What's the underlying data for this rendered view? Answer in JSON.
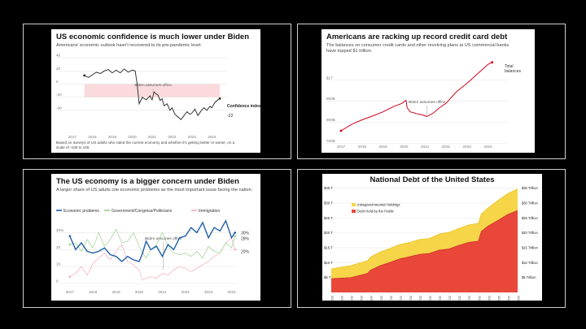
{
  "chart_data": [
    {
      "type": "line",
      "title": "US economic confidence is much lower under Biden",
      "subtitle": "Americans' economic outlook hasn't recovered to its pre-pandemic level.",
      "annotation": "Biden assumes office",
      "end_label": "Confidence index",
      "end_value_label": "-22",
      "footnote": "Based on surveys of US adults who rated the current economy and whether it's getting better or worse, on a scale of -100 to 100.",
      "ylim": [
        -55,
        45
      ],
      "yticks": [
        "40",
        "20",
        "0",
        "-20",
        "-40"
      ],
      "yticks_values": [
        40,
        20,
        0,
        -20,
        -40
      ],
      "xticks": [
        "2017",
        "2018",
        "2019",
        "2020",
        "2021",
        "2022",
        "2023",
        "2024"
      ],
      "xlim": [
        2017,
        2024.6
      ],
      "shade": [
        2017.6,
        2024.4,
        -20,
        0
      ],
      "x": [
        2017.6,
        2017.8,
        2018.0,
        2018.2,
        2018.4,
        2018.6,
        2018.8,
        2019.0,
        2019.2,
        2019.4,
        2019.6,
        2019.8,
        2020.0,
        2020.15,
        2020.25,
        2020.35,
        2020.5,
        2020.7,
        2020.9,
        2021.0,
        2021.1,
        2021.2,
        2021.3,
        2021.4,
        2021.5,
        2021.6,
        2021.75,
        2021.9,
        2022.0,
        2022.15,
        2022.3,
        2022.45,
        2022.6,
        2022.75,
        2022.9,
        2023.0,
        2023.15,
        2023.3,
        2023.45,
        2023.6,
        2023.75,
        2023.9,
        2024.0,
        2024.15,
        2024.3,
        2024.4
      ],
      "values": [
        13,
        10,
        14,
        18,
        16,
        20,
        22,
        17,
        21,
        17,
        23,
        18,
        21,
        20,
        0,
        -30,
        -20,
        -24,
        -18,
        -24,
        -12,
        -15,
        -17,
        -25,
        -22,
        -33,
        -30,
        -40,
        -36,
        -46,
        -50,
        -54,
        -48,
        -42,
        -46,
        -44,
        -38,
        -48,
        -41,
        -36,
        -40,
        -34,
        -36,
        -28,
        -24,
        -22
      ],
      "color": "#222222",
      "shade_color": "#fadadd"
    },
    {
      "type": "line",
      "title": "Americans are racking up record credit card debt",
      "subtitle": "The balances on consumer credit cards and other revolving plans at US commercial banks have topped $1 trillion.",
      "annotation": "Biden assumes office",
      "end_label": "Total balances",
      "yticks": [
        "$1T",
        "900B",
        "800B",
        "700B"
      ],
      "yticks_values": [
        1000,
        900,
        800,
        700
      ],
      "ylim": [
        710,
        1080
      ],
      "xticks": [
        "2017",
        "2018",
        "2019",
        "2020",
        "2021",
        "2022",
        "2023",
        "2024"
      ],
      "xlim": [
        2017,
        2024.6
      ],
      "x": [
        2017.0,
        2017.5,
        2018.0,
        2018.5,
        2019.0,
        2019.5,
        2019.9,
        2020.1,
        2020.15,
        2020.3,
        2020.6,
        2020.9,
        2021.1,
        2021.4,
        2021.7,
        2022.0,
        2022.5,
        2023.0,
        2023.5,
        2024.0,
        2024.2
      ],
      "values": [
        760,
        790,
        812,
        830,
        850,
        875,
        890,
        905,
        870,
        850,
        842,
        835,
        828,
        845,
        870,
        890,
        945,
        985,
        1030,
        1075,
        1085
      ],
      "color": "#d0021b"
    },
    {
      "type": "line",
      "title": "The US economy is a bigger concern under Biden",
      "subtitle": "A larger share of US adults cite economic problems as the most important issue facing the nation.",
      "annotation": "Biden assumes office",
      "legend": [
        "Economic problems",
        "Government/Congress/Politicians",
        "Immigration"
      ],
      "yticks": [
        "30%",
        "20",
        "10",
        "0"
      ],
      "yticks_values": [
        30,
        20,
        10,
        0
      ],
      "ylim": [
        0,
        35
      ],
      "xticks": [
        "2017",
        "2018",
        "2019",
        "2020",
        "2021",
        "2022",
        "2023",
        "2024"
      ],
      "xlim": [
        2016.9,
        2024.3
      ],
      "x": [
        2017.0,
        2017.25,
        2017.5,
        2017.75,
        2018.0,
        2018.25,
        2018.5,
        2018.75,
        2019.0,
        2019.25,
        2019.5,
        2019.75,
        2020.0,
        2020.15,
        2020.3,
        2020.5,
        2020.75,
        2021.0,
        2021.25,
        2021.5,
        2021.75,
        2022.0,
        2022.25,
        2022.5,
        2022.75,
        2023.0,
        2023.25,
        2023.5,
        2023.75,
        2024.0,
        2024.15
      ],
      "series": [
        {
          "name": "Economic problems",
          "end_label": "30%",
          "color": "#1f5fa8",
          "values": [
            28,
            20,
            24,
            19,
            18,
            19,
            21,
            17,
            16,
            13,
            16,
            14,
            13,
            18,
            25,
            20,
            22,
            16,
            23,
            20,
            27,
            28,
            33,
            30,
            36,
            27,
            33,
            31,
            37,
            27,
            30
          ]
        },
        {
          "name": "Government/Congress/Politicians",
          "end_label": "28%",
          "color": "#9ccf8c",
          "values": [
            23,
            24,
            19,
            26,
            21,
            30,
            22,
            26,
            32,
            24,
            25,
            30,
            22,
            18,
            15,
            20,
            23,
            30,
            22,
            18,
            17,
            18,
            16,
            19,
            15,
            22,
            19,
            18,
            24,
            21,
            28
          ]
        },
        {
          "name": "Immigration",
          "end_label": "20%",
          "color": "#f2aab8",
          "values": [
            4,
            6,
            10,
            5,
            12,
            15,
            18,
            14,
            19,
            23,
            13,
            11,
            8,
            2,
            3,
            4,
            3,
            6,
            5,
            8,
            10,
            9,
            7,
            9,
            11,
            13,
            16,
            18,
            24,
            27,
            20
          ]
        }
      ]
    },
    {
      "type": "area",
      "title": "National Debt of the United States",
      "legend": [
        "Intragovernmental Holdings",
        "Debt Held by the Public"
      ],
      "yticks_left": [
        "$35 T",
        "$30 T",
        "$25 T",
        "$20 T",
        "$15 T",
        "$10 T",
        "$5 T"
      ],
      "yticks_right": [
        "$35 Trillion",
        "$30 Trillion",
        "$25 Trillion",
        "$20 Trillion",
        "$15 Trillion",
        "$10 Trillion",
        "$5 Trillion"
      ],
      "yticks_values": [
        35,
        30,
        25,
        20,
        15,
        10,
        5
      ],
      "ylim": [
        0,
        36
      ],
      "xlim": [
        2005,
        2024
      ],
      "xticks": [
        "2005",
        "2006",
        "2007",
        "2008",
        "2009",
        "2010",
        "2011",
        "2012",
        "2013",
        "2014",
        "2015",
        "2016",
        "2017",
        "2018",
        "2019",
        "2020",
        "2021",
        "2022",
        "2023",
        "2024"
      ],
      "x": [
        2005,
        2006,
        2007,
        2008,
        2008.7,
        2009,
        2010,
        2011,
        2012,
        2013,
        2014,
        2015,
        2016,
        2017,
        2018,
        2019,
        2020,
        2020.3,
        2021,
        2022,
        2023,
        2024
      ],
      "series": [
        {
          "name": "Debt Held by the Public",
          "color": "#e8473a",
          "values": [
            4.6,
            4.8,
            5.0,
            5.8,
            6.4,
            7.5,
            9.0,
            10.1,
            11.3,
            12.0,
            12.8,
            13.1,
            14.2,
            14.6,
            15.8,
            16.8,
            17.2,
            20.5,
            22.3,
            24.2,
            26.2,
            27.5
          ]
        },
        {
          "name": "Intragovernmental Holdings",
          "color": "#f6d548",
          "values": [
            7.9,
            8.5,
            9.0,
            10.0,
            10.7,
            11.9,
            13.6,
            14.8,
            16.1,
            16.8,
            17.8,
            18.1,
            19.6,
            20.2,
            21.5,
            22.7,
            23.2,
            26.4,
            28.4,
            30.9,
            33.2,
            34.8
          ]
        }
      ]
    }
  ]
}
